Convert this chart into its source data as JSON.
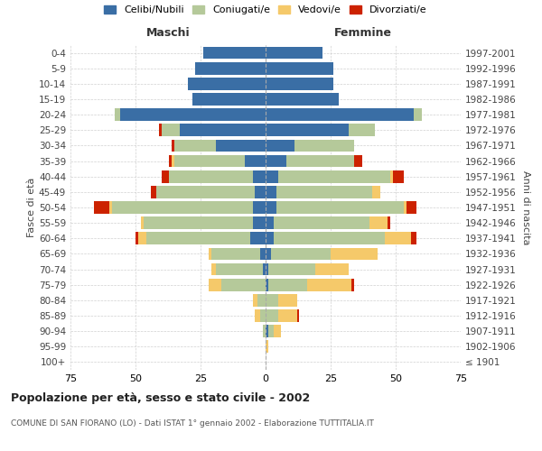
{
  "age_groups": [
    "100+",
    "95-99",
    "90-94",
    "85-89",
    "80-84",
    "75-79",
    "70-74",
    "65-69",
    "60-64",
    "55-59",
    "50-54",
    "45-49",
    "40-44",
    "35-39",
    "30-34",
    "25-29",
    "20-24",
    "15-19",
    "10-14",
    "5-9",
    "0-4"
  ],
  "birth_years": [
    "≤ 1901",
    "1902-1906",
    "1907-1911",
    "1912-1916",
    "1917-1921",
    "1922-1926",
    "1927-1931",
    "1932-1936",
    "1937-1941",
    "1942-1946",
    "1947-1951",
    "1952-1956",
    "1957-1961",
    "1962-1966",
    "1967-1971",
    "1972-1976",
    "1977-1981",
    "1982-1986",
    "1987-1991",
    "1992-1996",
    "1997-2001"
  ],
  "male": {
    "celibi": [
      0,
      0,
      0,
      0,
      0,
      0,
      1,
      2,
      6,
      5,
      5,
      4,
      5,
      8,
      19,
      33,
      56,
      28,
      30,
      27,
      24
    ],
    "coniugati": [
      0,
      0,
      1,
      2,
      3,
      17,
      18,
      19,
      40,
      42,
      54,
      38,
      32,
      27,
      16,
      7,
      2,
      0,
      0,
      0,
      0
    ],
    "vedovi": [
      0,
      0,
      0,
      2,
      2,
      5,
      2,
      1,
      3,
      1,
      1,
      0,
      0,
      1,
      0,
      0,
      0,
      0,
      0,
      0,
      0
    ],
    "divorziati": [
      0,
      0,
      0,
      0,
      0,
      0,
      0,
      0,
      1,
      0,
      6,
      2,
      3,
      1,
      1,
      1,
      0,
      0,
      0,
      0,
      0
    ]
  },
  "female": {
    "nubili": [
      0,
      0,
      1,
      0,
      0,
      1,
      1,
      2,
      3,
      3,
      4,
      4,
      5,
      8,
      11,
      32,
      57,
      28,
      26,
      26,
      22
    ],
    "coniugate": [
      0,
      0,
      2,
      5,
      5,
      15,
      18,
      23,
      43,
      37,
      49,
      37,
      43,
      26,
      23,
      10,
      3,
      0,
      0,
      0,
      0
    ],
    "vedove": [
      0,
      1,
      3,
      7,
      7,
      17,
      13,
      18,
      10,
      7,
      1,
      3,
      1,
      0,
      0,
      0,
      0,
      0,
      0,
      0,
      0
    ],
    "divorziate": [
      0,
      0,
      0,
      1,
      0,
      1,
      0,
      0,
      2,
      1,
      4,
      0,
      4,
      3,
      0,
      0,
      0,
      0,
      0,
      0,
      0
    ]
  },
  "colors": {
    "celibi": "#3a6ea5",
    "coniugati": "#b5c99a",
    "vedovi": "#f5c96a",
    "divorziati": "#cc2200"
  },
  "legend_labels": [
    "Celibi/Nubili",
    "Coniugati/e",
    "Vedovi/e",
    "Divorziati/e"
  ],
  "xlim": 75,
  "title": "Popolazione per età, sesso e stato civile - 2002",
  "subtitle": "COMUNE DI SAN FIORANO (LO) - Dati ISTAT 1° gennaio 2002 - Elaborazione TUTTITALIA.IT",
  "ylabel_left": "Fasce di età",
  "ylabel_right": "Anni di nascita",
  "xlabel_left": "Maschi",
  "xlabel_right": "Femmine",
  "background_color": "#ffffff",
  "grid_color": "#cccccc"
}
